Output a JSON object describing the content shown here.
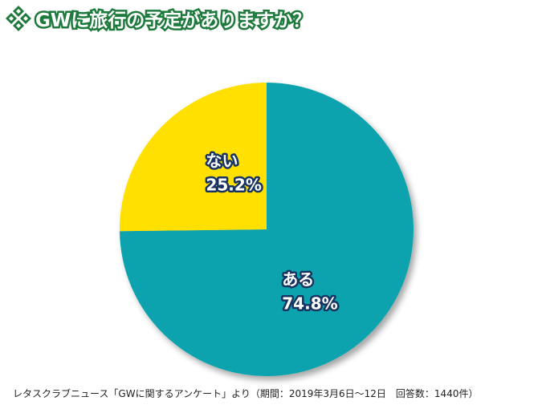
{
  "title": "GWに旅行の予定がありますか？",
  "title_icon": "diamond-cluster-icon",
  "footer": "レタスクラブニュース「GWに関するアンケート」より（期間：2019年3月6日〜12日　回答数：1440件）",
  "colors": {
    "title_stroke": "#1e7a3c",
    "slice_yes": "#0ea3ae",
    "slice_no": "#ffe000",
    "label_outline": "#17335f"
  },
  "chart_data": {
    "type": "pie",
    "title": "GWに旅行の予定がありますか？",
    "slices": [
      {
        "label": "ある",
        "value": 74.8,
        "value_label": "74.8%",
        "color": "#0ea3ae"
      },
      {
        "label": "ない",
        "value": 25.2,
        "value_label": "25.2%",
        "color": "#ffe000"
      }
    ]
  }
}
